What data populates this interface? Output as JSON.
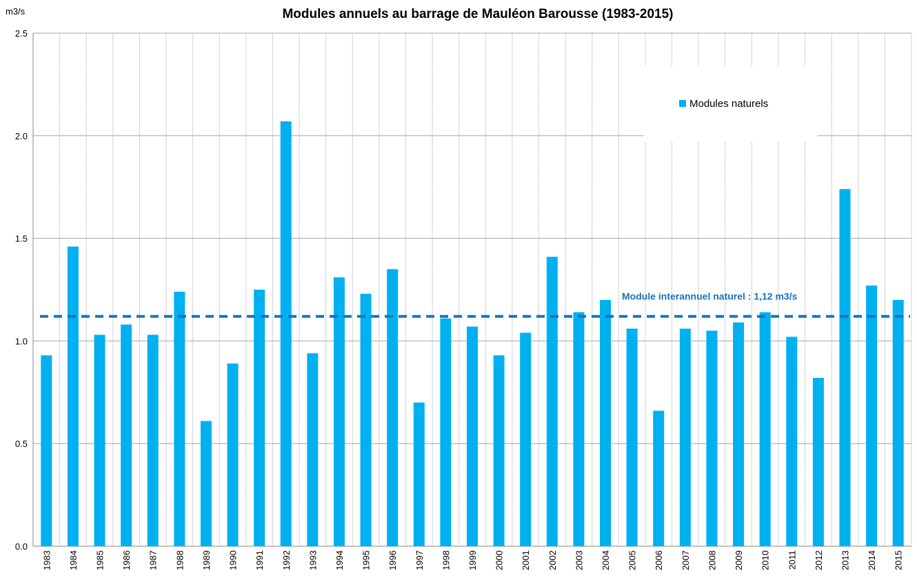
{
  "chart_data": {
    "type": "bar",
    "title": "Modules annuels au barrage de Mauléon Barousse (1983-2015)",
    "y_label": "m3/s",
    "categories": [
      "1983",
      "1984",
      "1985",
      "1986",
      "1987",
      "1988",
      "1989",
      "1990",
      "1991",
      "1992",
      "1993",
      "1994",
      "1995",
      "1996",
      "1997",
      "1998",
      "1999",
      "2000",
      "2001",
      "2002",
      "2003",
      "2004",
      "2005",
      "2006",
      "2007",
      "2008",
      "2009",
      "2010",
      "2011",
      "2012",
      "2013",
      "2014",
      "2015"
    ],
    "series": [
      {
        "name": "Modules naturels",
        "color": "#00b0f0",
        "values": [
          0.93,
          1.46,
          1.03,
          1.08,
          1.03,
          1.24,
          0.61,
          0.89,
          1.25,
          2.07,
          0.94,
          1.31,
          1.23,
          1.35,
          0.7,
          1.11,
          1.07,
          0.93,
          1.04,
          1.41,
          1.14,
          1.2,
          1.06,
          0.66,
          1.06,
          1.05,
          1.09,
          1.14,
          1.02,
          0.82,
          1.74,
          1.27,
          1.2
        ]
      }
    ],
    "reference_line": {
      "value": 1.12,
      "label": "Module interannuel naturel : 1,12 m3/s",
      "color": "#1a72c0"
    },
    "ylim": [
      0,
      2.5
    ],
    "yticks": [
      {
        "value": 0,
        "label": "0.0"
      },
      0.5,
      {
        "value": 1,
        "label": "1.0"
      },
      1.5,
      {
        "value": 2,
        "label": "2.0"
      },
      2.5
    ],
    "grid": true,
    "legend": "upper right"
  }
}
